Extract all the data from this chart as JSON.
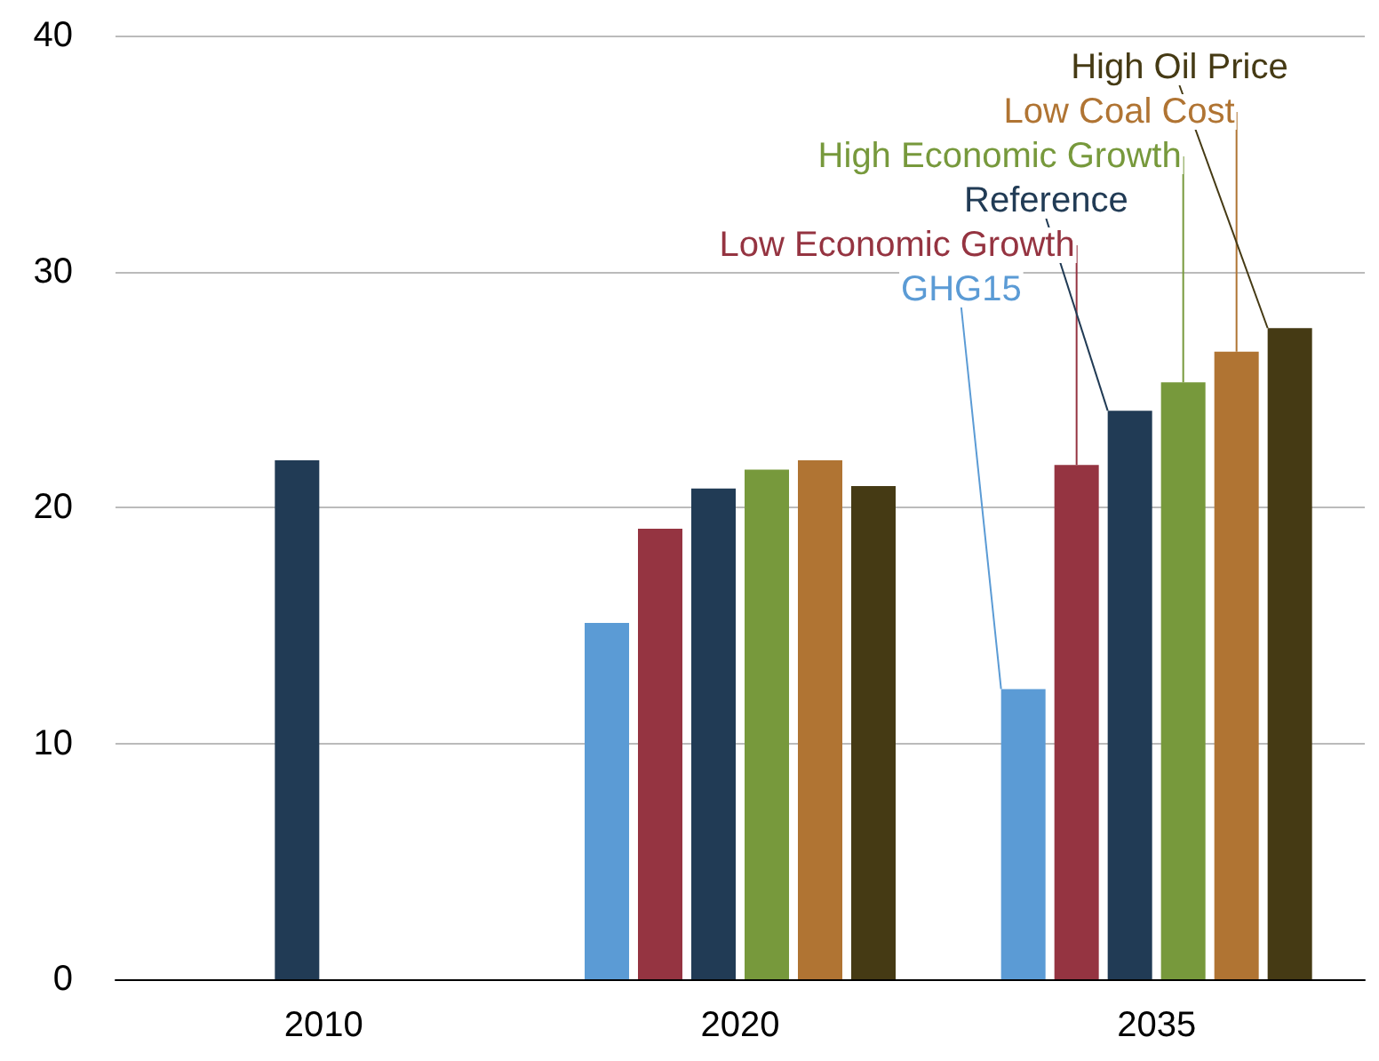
{
  "chart_data": {
    "type": "bar",
    "categories": [
      "2010",
      "2020",
      "2035"
    ],
    "series": [
      {
        "name": "GHG15",
        "color": "#5b9bd5",
        "values": [
          null,
          15.1,
          12.3
        ]
      },
      {
        "name": "Low Economic Growth",
        "color": "#953441",
        "values": [
          null,
          19.1,
          21.8
        ]
      },
      {
        "name": "Reference",
        "color": "#213b55",
        "values": [
          22.0,
          20.8,
          24.1
        ]
      },
      {
        "name": "High Economic Growth",
        "color": "#77993c",
        "values": [
          null,
          21.6,
          25.3
        ]
      },
      {
        "name": "Low Coal Cost",
        "color": "#b07433",
        "values": [
          null,
          22.0,
          26.6
        ]
      },
      {
        "name": "High Oil Price",
        "color": "#453a14",
        "values": [
          null,
          20.9,
          27.6
        ]
      }
    ],
    "ylim": [
      0,
      40
    ],
    "yticks": [
      0,
      10,
      20,
      30,
      40
    ],
    "grid": "y",
    "legend": false
  }
}
